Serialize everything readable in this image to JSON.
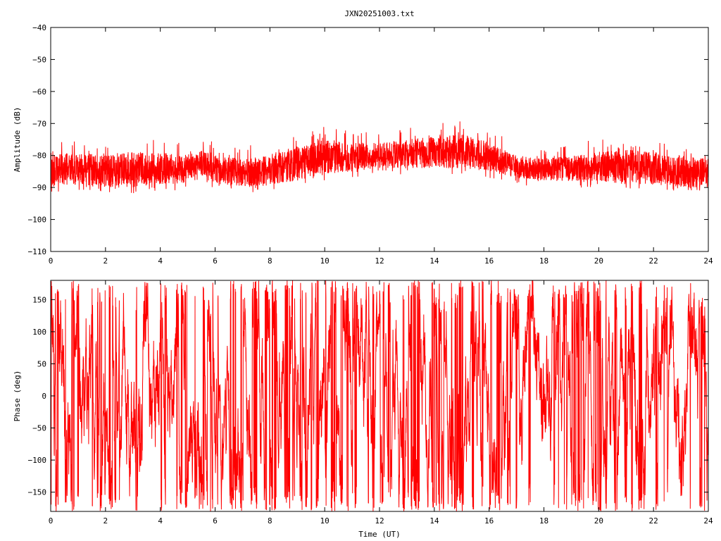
{
  "title": "JXN20251003.txt",
  "chart_data": [
    {
      "type": "line",
      "ylabel": "Amplitude (dB)",
      "xlabel": "",
      "xlim": [
        0,
        24
      ],
      "ylim": [
        -110,
        -40
      ],
      "xticks": [
        "0",
        "2",
        "4",
        "6",
        "8",
        "10",
        "12",
        "14",
        "16",
        "18",
        "20",
        "22",
        "24"
      ],
      "yticks": [
        "-40",
        "-50",
        "-60",
        "-70",
        "-80",
        "-90",
        "-100",
        "-110"
      ],
      "series_color": "#ff0000",
      "grid": false,
      "envelope": {
        "x": [
          0,
          1,
          2,
          3,
          4,
          4.8,
          5.5,
          6,
          7,
          8,
          9,
          10,
          11,
          12,
          13,
          14,
          15,
          16,
          17,
          18,
          19,
          20,
          21,
          22,
          23,
          24
        ],
        "upper": [
          -80,
          -79,
          -80,
          -79,
          -79,
          -80,
          -78,
          -80,
          -81,
          -80,
          -77,
          -75,
          -76,
          -76,
          -75,
          -74,
          -73,
          -76,
          -80,
          -81,
          -80,
          -79,
          -78,
          -79,
          -80,
          -81
        ],
        "lower": [
          -90,
          -89,
          -90,
          -90,
          -89,
          -89,
          -86,
          -89,
          -90,
          -89,
          -88,
          -86,
          -85,
          -84,
          -84,
          -84,
          -84,
          -85,
          -87,
          -88,
          -88,
          -88,
          -89,
          -89,
          -90,
          -90
        ]
      }
    },
    {
      "type": "line",
      "ylabel": "Phase (deg)",
      "xlabel": "Time (UT)",
      "xlim": [
        0,
        24
      ],
      "ylim": [
        -180,
        180
      ],
      "xticks": [
        "0",
        "2",
        "4",
        "6",
        "8",
        "10",
        "12",
        "14",
        "16",
        "18",
        "20",
        "22",
        "24"
      ],
      "yticks": [
        "150",
        "100",
        "50",
        "0",
        "-50",
        "-100",
        "-150"
      ],
      "series_color": "#ff0000",
      "grid": false,
      "range": [
        -180,
        180
      ]
    }
  ]
}
